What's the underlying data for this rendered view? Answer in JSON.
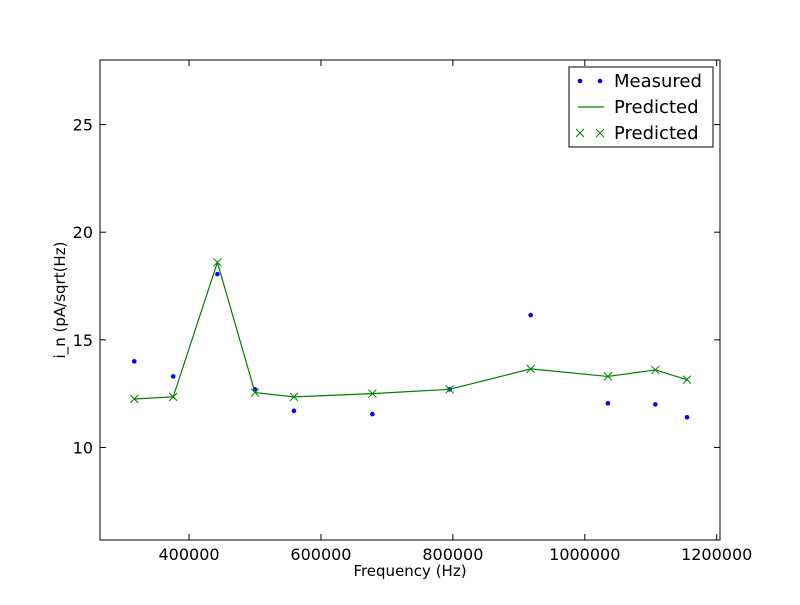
{
  "chart_data": {
    "type": "line",
    "title": "",
    "xlabel": "Frequency (Hz)",
    "ylabel": "i_n (pA/sqrt(Hz)",
    "xlim": [
      265000,
      1205000
    ],
    "ylim": [
      5.7,
      28.0
    ],
    "x_ticks": [
      400000,
      600000,
      800000,
      1000000,
      1200000
    ],
    "x_tick_labels": [
      "400000",
      "600000",
      "800000",
      "1000000",
      "1200000"
    ],
    "y_ticks": [
      10,
      15,
      20,
      25
    ],
    "y_tick_labels": [
      "10",
      "15",
      "20",
      "25"
    ],
    "grid": false,
    "legend_position": "top-right",
    "series": [
      {
        "name": "Measured",
        "style": "points",
        "color": "#0000ff",
        "x": [
          317000,
          376000,
          443000,
          500000,
          559000,
          678000,
          795000,
          918000,
          1035000,
          1107000,
          1155000
        ],
        "values": [
          14.0,
          13.3,
          18.05,
          12.7,
          11.7,
          11.55,
          12.7,
          16.15,
          12.05,
          12.0,
          11.4
        ]
      },
      {
        "name": "Predicted",
        "style": "line",
        "color": "#008000",
        "x": [
          317000,
          376000,
          443000,
          500000,
          559000,
          678000,
          795000,
          918000,
          1035000,
          1107000,
          1155000
        ],
        "values": [
          12.25,
          12.35,
          18.6,
          12.55,
          12.35,
          12.5,
          12.7,
          13.65,
          13.3,
          13.6,
          13.15
        ]
      },
      {
        "name": "Predicted",
        "style": "x-markers",
        "color": "#008000",
        "x": [
          317000,
          376000,
          443000,
          500000,
          559000,
          678000,
          795000,
          918000,
          1035000,
          1107000,
          1155000
        ],
        "values": [
          12.25,
          12.35,
          18.6,
          12.55,
          12.35,
          12.5,
          12.7,
          13.65,
          13.3,
          13.6,
          13.15
        ]
      }
    ]
  }
}
